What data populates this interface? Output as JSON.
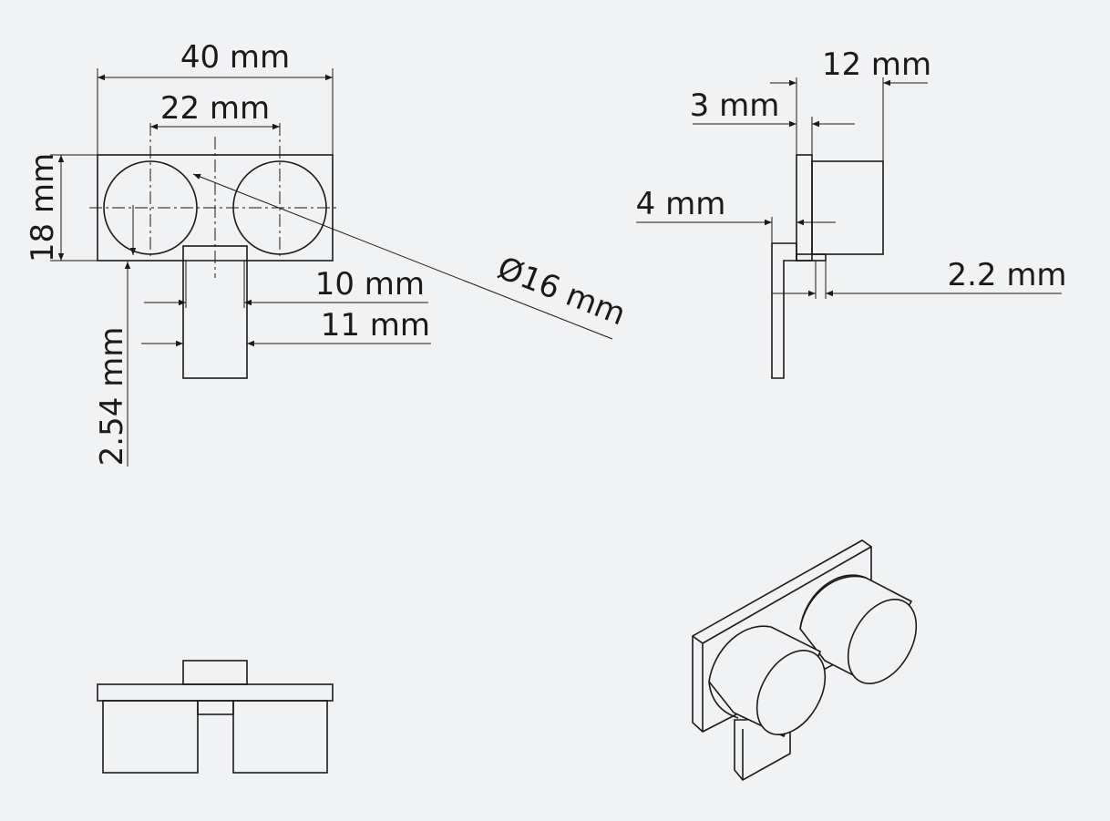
{
  "front_view": {
    "width_label": "40 mm",
    "spacing_label": "22 mm",
    "height_label": "18 mm",
    "diameter_label": "Ø16 mm",
    "pin_width_inner_label": "10 mm",
    "pin_width_outer_label": "11 mm",
    "pin_pitch_label": "2.54 mm"
  },
  "side_view": {
    "depth_label": "12 mm",
    "board_thickness_label": "3 mm",
    "pin_offset_label": "4 mm",
    "pin_thickness_label": "2.2 mm"
  }
}
